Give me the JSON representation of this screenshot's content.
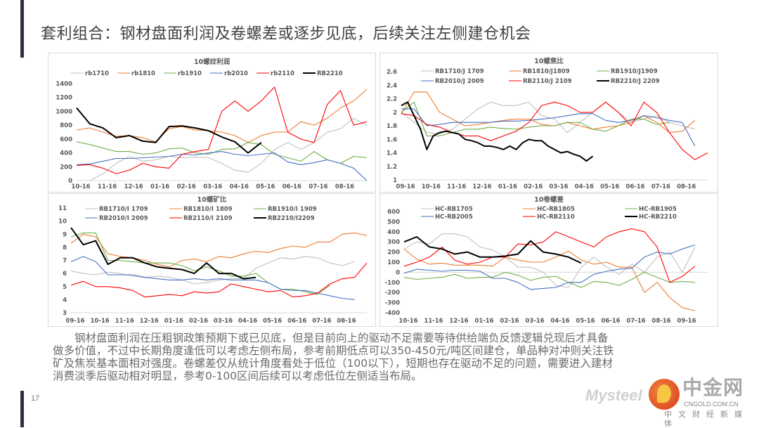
{
  "slide": {
    "title": "套利组合：钢材盘面利润及卷螺差或逐步见底，后续关注左侧建仓机会",
    "page_number": "17",
    "paragraph": [
      "　　钢材盘面利润在压粗钢政策预期下或已见底，但是目前向上的驱动不足需要等待供给端负反馈逻辑兑现后才具备",
      "做多价值，不过中长期角度逢低可以考虑左侧布局，参考前期低点可以350-450元/吨区间建仓，单品种对冲则关注铁",
      "矿及焦炭基本面相对强度。卷螺差仅从统计角度看处于低位（100以下），短期也存在驱动不足的问题，需要进入建材",
      "消费淡季后驱动相对明显，参考0-100区间后续可以考虑低位左侧适当布局。"
    ],
    "logo": {
      "name": "中金网",
      "url": "CNGOLD.COM.CN",
      "tagline": "中文财经新媒体",
      "watermark": "Mysteel"
    }
  },
  "chart_data": [
    {
      "type": "line",
      "title": "10螺纹利润",
      "xlabel": "",
      "ylabel": "",
      "ylim": [
        0,
        1400
      ],
      "yticks": [
        0,
        200,
        400,
        600,
        800,
        1000,
        1200,
        1400
      ],
      "xlim": [
        0,
        11
      ],
      "xticks": [
        "10-16",
        "11-16",
        "12-16",
        "01-16",
        "02-16",
        "03-16",
        "04-16",
        "05-16",
        "06-16",
        "07-16",
        "08-16"
      ],
      "legend": "top",
      "series": [
        {
          "name": "rb1710",
          "color": "#bfbfbf",
          "x0": 0,
          "step": 0.5,
          "y": [
            null,
            0,
            100,
            250,
            350,
            280,
            300,
            350,
            330,
            340,
            330,
            250,
            150,
            120,
            250,
            450,
            550,
            450,
            550,
            700,
            750,
            900,
            800
          ]
        },
        {
          "name": "rb1810",
          "color": "#ed7d31",
          "x0": 0,
          "step": 0.5,
          "y": [
            730,
            760,
            700,
            640,
            650,
            620,
            560,
            750,
            780,
            730,
            720,
            700,
            650,
            550,
            650,
            700,
            700,
            850,
            800,
            900,
            1050,
            1150,
            1320
          ]
        },
        {
          "name": "rb1910",
          "color": "#70ad47",
          "x0": 0,
          "step": 0.5,
          "y": [
            560,
            520,
            470,
            420,
            420,
            380,
            400,
            460,
            470,
            400,
            380,
            450,
            460,
            550,
            520,
            380,
            330,
            280,
            420,
            300,
            250,
            350,
            330
          ]
        },
        {
          "name": "rb2010",
          "color": "#4472c4",
          "x0": 0,
          "step": 0.5,
          "y": [
            230,
            240,
            280,
            320,
            320,
            330,
            340,
            350,
            380,
            370,
            400,
            420,
            380,
            360,
            380,
            400,
            270,
            230,
            260,
            300,
            250,
            180,
            0
          ]
        },
        {
          "name": "rb2110",
          "color": "#ff0000",
          "x0": 0,
          "step": 0.5,
          "y": [
            220,
            230,
            180,
            100,
            150,
            250,
            200,
            180,
            380,
            420,
            450,
            1000,
            1150,
            1000,
            1150,
            1350,
            700,
            600,
            550,
            1100,
            1300,
            800,
            850
          ]
        },
        {
          "name": "RB2210",
          "color": "#000000",
          "bold": true,
          "x0": 0,
          "step": 0.5,
          "y": [
            1050,
            820,
            760,
            620,
            650,
            570,
            550,
            780,
            790,
            760,
            720,
            630,
            560,
            400,
            550
          ]
        }
      ]
    },
    {
      "type": "line",
      "title": "10螺焦比",
      "xlabel": "",
      "ylabel": "",
      "ylim": [
        1,
        2.6
      ],
      "yticks": [
        1,
        1.2,
        1.4,
        1.6,
        1.8,
        2,
        2.2,
        2.4,
        2.6
      ],
      "xlim": [
        0,
        12
      ],
      "xticks": [
        "09-16",
        "10-16",
        "11-16",
        "12-16",
        "01-16",
        "02-16",
        "03-16",
        "04-16",
        "05-16",
        "06-16",
        "07-16",
        "08-16"
      ],
      "legend": "top",
      "series": [
        {
          "name": "RB1710/J 1709",
          "color": "#bfbfbf",
          "x0": 0,
          "step": 0.5,
          "y": [
            2.0,
            1.85,
            1.7,
            1.68,
            1.75,
            1.9,
            2.05,
            2.15,
            2.1,
            2.1,
            2.15,
            1.95,
            1.9,
            1.7,
            1.85,
            2.0,
            2.15,
            2.0,
            1.85,
            1.9,
            1.95,
            1.85,
            1.8,
            1.75
          ]
        },
        {
          "name": "RB1810/J1809",
          "color": "#ed7d31",
          "x0": 0,
          "step": 0.5,
          "y": [
            1.98,
            2.3,
            2.3,
            2.0,
            1.9,
            1.8,
            1.82,
            1.85,
            1.88,
            1.9,
            1.9,
            1.82,
            1.8,
            1.85,
            1.8,
            1.75,
            1.78,
            1.8,
            1.85,
            1.95,
            1.85,
            1.7,
            1.72,
            1.88
          ]
        },
        {
          "name": "RB1910/J1909",
          "color": "#70ad47",
          "x0": 0,
          "step": 0.5,
          "y": [
            2.0,
            2.15,
            1.65,
            1.65,
            1.7,
            1.75,
            1.75,
            1.78,
            1.76,
            1.75,
            1.78,
            1.8,
            1.8,
            1.85,
            1.85,
            1.75,
            1.72,
            1.8,
            1.9,
            1.9,
            1.82,
            1.85
          ]
        },
        {
          "name": "RB2010/J 2009",
          "color": "#4472c4",
          "x0": 0,
          "step": 0.5,
          "y": [
            2.05,
            2.05,
            1.8,
            1.82,
            1.85,
            1.85,
            1.85,
            1.85,
            1.87,
            1.87,
            1.88,
            1.9,
            1.92,
            1.95,
            1.98,
            1.98,
            1.88,
            1.85,
            1.88,
            1.95,
            1.92,
            1.88,
            1.85,
            1.5
          ]
        },
        {
          "name": "RB2110/J 2109",
          "color": "#ff0000",
          "x0": 0,
          "step": 0.5,
          "y": [
            1.98,
            1.95,
            1.82,
            1.78,
            1.7,
            1.65,
            1.65,
            1.58,
            1.65,
            1.72,
            1.85,
            2.1,
            2.15,
            2.1,
            2.0,
            2.0,
            2.15,
            2.0,
            1.8,
            2.15,
            2.0,
            1.7,
            1.45,
            1.3,
            1.4
          ]
        },
        {
          "name": "RB2210/J 2209",
          "color": "#000000",
          "bold": true,
          "x0": 0,
          "step": 0.25,
          "y": [
            2.1,
            2.15,
            1.95,
            1.75,
            1.45,
            1.65,
            1.7,
            1.72,
            1.7,
            1.68,
            1.6,
            1.58,
            1.55,
            1.5,
            1.5,
            1.48,
            1.45,
            1.5,
            1.45,
            1.55,
            1.6,
            1.58,
            1.58,
            1.5,
            1.45,
            1.4,
            1.42,
            1.38,
            1.35,
            1.28,
            1.35
          ]
        }
      ]
    },
    {
      "type": "line",
      "title": "10螺矿比",
      "xlabel": "",
      "ylabel": "",
      "ylim": [
        3,
        11
      ],
      "yticks": [
        3,
        4,
        5,
        6,
        7,
        8,
        9,
        10,
        11
      ],
      "xlim": [
        0,
        12
      ],
      "xticks": [
        "09-16",
        "10-16",
        "11-16",
        "12-16",
        "01-16",
        "02-16",
        "03-16",
        "04-16",
        "05-16",
        "06-16",
        "07-16",
        "08-16"
      ],
      "legend": "top",
      "series": [
        {
          "name": "RB1710/I 1709",
          "color": "#bfbfbf",
          "x0": 0,
          "step": 0.5,
          "y": [
            6.2,
            6.0,
            5.9,
            6.1,
            6.0,
            5.8,
            5.7,
            5.8,
            5.7,
            5.5,
            5.2,
            5.3,
            5.5,
            5.6,
            5.6,
            6.4,
            6.8,
            7.2,
            7.1,
            7.3,
            7.2,
            6.8,
            6.6,
            6.9
          ]
        },
        {
          "name": "RB1810/I 1809",
          "color": "#ed7d31",
          "x0": 0,
          "step": 0.5,
          "y": [
            8.3,
            9.0,
            8.8,
            7.5,
            7.3,
            7.2,
            7.0,
            6.7,
            6.5,
            7.0,
            7.1,
            6.9,
            7.3,
            7.2,
            7.5,
            7.7,
            7.6,
            7.9,
            8.1,
            8.0,
            8.4,
            8.4,
            9.0,
            9.1,
            8.9
          ]
        },
        {
          "name": "RB1910/I 1909",
          "color": "#70ad47",
          "x0": 0,
          "step": 0.5,
          "y": [
            8.8,
            9.1,
            9.1,
            7.0,
            7.0,
            6.9,
            6.8,
            6.8,
            6.8,
            6.6,
            6.2,
            6.5,
            6.2,
            5.8,
            5.8,
            6.0,
            5.3,
            4.8,
            4.8,
            4.6,
            4.4,
            5.1
          ]
        },
        {
          "name": "RB2010/I  2009",
          "color": "#4472c4",
          "x0": 0,
          "step": 0.5,
          "y": [
            6.9,
            7.3,
            6.9,
            5.9,
            5.9,
            5.9,
            5.7,
            5.6,
            5.5,
            5.5,
            5.6,
            5.5,
            5.6,
            5.5,
            5.5,
            5.5,
            5.3,
            4.8,
            4.7,
            4.7,
            4.5,
            4.3,
            4.1,
            4.0
          ]
        },
        {
          "name": "RB2110/I 2109",
          "color": "#ff0000",
          "x0": 0,
          "step": 0.5,
          "y": [
            5.1,
            5.4,
            5.0,
            5.0,
            4.9,
            4.7,
            4.2,
            4.3,
            4.4,
            4.3,
            4.6,
            4.5,
            4.6,
            5.2,
            5.0,
            4.8,
            4.6,
            4.7,
            4.2,
            4.3,
            4.5,
            5.2,
            5.6,
            5.7,
            6.8
          ]
        },
        {
          "name": "RB2210/I2209",
          "color": "#000000",
          "bold": true,
          "x0": 0,
          "step": 0.5,
          "y": [
            9.5,
            8.2,
            8.5,
            6.7,
            7.2,
            7.2,
            6.8,
            6.5,
            6.4,
            6.3,
            6.0,
            6.8,
            6.0,
            6.0,
            5.6,
            5.7
          ]
        }
      ]
    },
    {
      "type": "line",
      "title": "10卷螺差",
      "xlabel": "",
      "ylabel": "",
      "ylim": [
        -400,
        600
      ],
      "yticks": [
        -400,
        -300,
        -200,
        -100,
        0,
        100,
        200,
        300,
        400,
        500,
        600
      ],
      "xlim": [
        0,
        12
      ],
      "xticks": [
        "10-16",
        "11-16",
        "12-16",
        "01-16",
        "02-16",
        "03-16",
        "04-16",
        "05-16",
        "06-16",
        "07-16",
        "08-16",
        "09-16"
      ],
      "legend": "top",
      "series": [
        {
          "name": "HC-RB1705",
          "color": "#bfbfbf",
          "x0": 0,
          "step": 0.5,
          "y": [
            230,
            300,
            280,
            380,
            380,
            350,
            250,
            220,
            150,
            50,
            50,
            0,
            -130,
            -150,
            50,
            150,
            50,
            -20,
            80,
            0,
            150,
            200,
            0,
            250
          ]
        },
        {
          "name": "HC-RB1805",
          "color": "#ed7d31",
          "x0": 0,
          "step": 0.5,
          "y": [
            230,
            130,
            80,
            90,
            70,
            70,
            70,
            60,
            150,
            120,
            100,
            100,
            150,
            210,
            120,
            80,
            100,
            50,
            50,
            -200,
            -100,
            -250,
            -350,
            -380
          ]
        },
        {
          "name": "HC-RB1905",
          "color": "#70ad47",
          "x0": 0,
          "step": 0.5,
          "y": [
            -50,
            -70,
            -60,
            -50,
            -20,
            -60,
            -50,
            -50,
            0,
            -30,
            -80,
            -50,
            -40,
            -100,
            -150,
            -90,
            -100,
            -130,
            -70,
            0,
            -50,
            -100,
            -90,
            -100
          ]
        },
        {
          "name": "HC-RB2005",
          "color": "#4472c4",
          "x0": 0,
          "step": 0.5,
          "y": [
            -10,
            30,
            20,
            10,
            20,
            20,
            10,
            -60,
            -60,
            -100,
            -170,
            -160,
            -150,
            -100,
            -100,
            -20,
            10,
            30,
            40,
            150,
            200,
            180,
            230,
            270
          ]
        },
        {
          "name": "HC-RB2110",
          "color": "#ff0000",
          "x0": 0,
          "step": 0.5,
          "y": [
            60,
            100,
            150,
            250,
            120,
            80,
            100,
            150,
            150,
            280,
            270,
            300,
            400,
            350,
            300,
            250,
            350,
            400,
            430,
            400,
            250,
            -100,
            -40,
            60
          ]
        },
        {
          "name": "HC-RB2210",
          "color": "#000000",
          "bold": true,
          "x0": 0,
          "step": 0.5,
          "y": [
            300,
            350,
            250,
            230,
            180,
            200,
            150,
            150,
            160,
            180,
            310,
            200,
            180,
            150,
            90
          ]
        }
      ]
    }
  ]
}
